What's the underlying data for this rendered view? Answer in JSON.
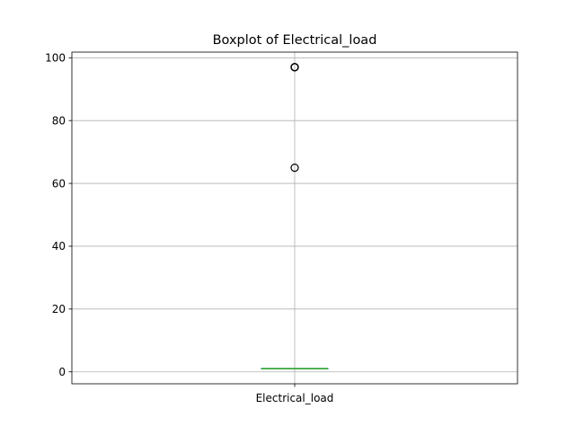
{
  "chart_data": {
    "type": "box",
    "title": "Boxplot of Electrical_load",
    "xlabel": "",
    "ylabel": "",
    "categories": [
      "Electrical_load"
    ],
    "ylim": [
      -3.8,
      101.8
    ],
    "yticks": [
      0,
      20,
      40,
      60,
      80,
      100
    ],
    "grid": true,
    "legend": "none",
    "series": [
      {
        "whisker_low": 1.0,
        "q1": 1.0,
        "median": 1.0,
        "q3": 1.0,
        "whisker_high": 1.0,
        "outliers": [
          65,
          97,
          97,
          97,
          97
        ]
      }
    ],
    "colors": {
      "box": "#1f77b4",
      "median": "#2ca02c",
      "whisker": "#1f77b4",
      "outlier_edge": "#000000",
      "grid": "#b0b0b0",
      "axes": "#000000"
    }
  }
}
